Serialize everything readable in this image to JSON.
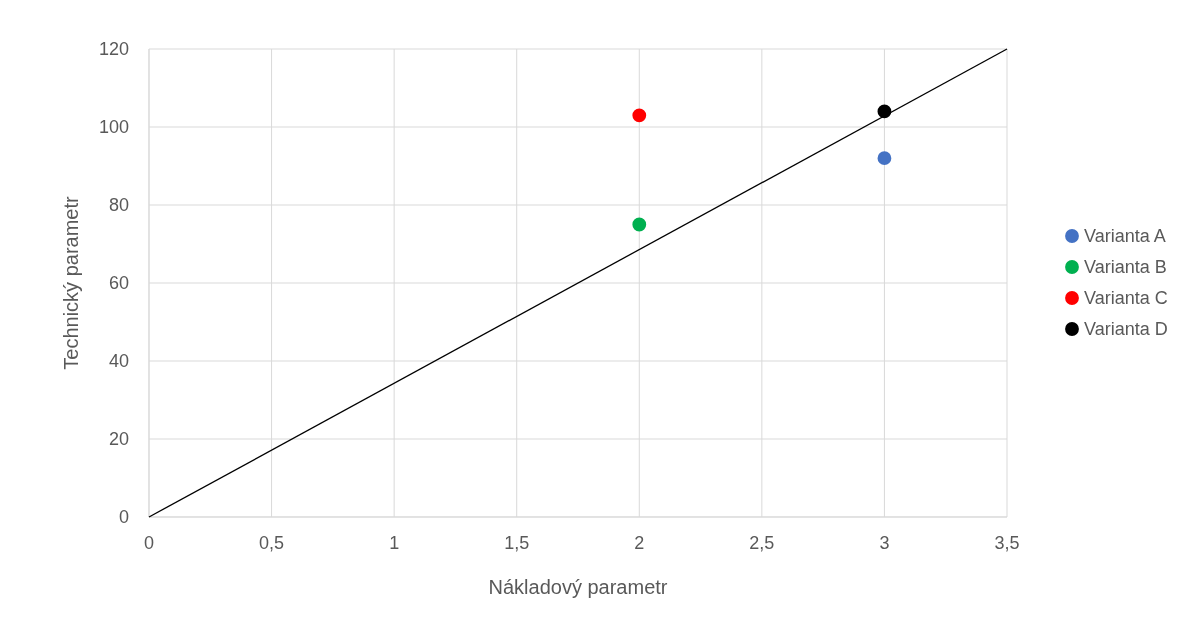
{
  "chart_data": {
    "type": "scatter",
    "xlabel": "Nákladový parametr",
    "ylabel": "Technický parametr",
    "xlim": [
      0,
      3.5
    ],
    "xticks": [
      0,
      {
        "value": 0.5,
        "label": "0,5"
      },
      1,
      {
        "value": 1.5,
        "label": "1,5"
      },
      2,
      {
        "value": 2.5,
        "label": "2,5"
      },
      3,
      {
        "value": 3.5,
        "label": "3,5"
      }
    ],
    "ylim": [
      0,
      120
    ],
    "yticks": [
      0,
      20,
      40,
      60,
      80,
      100,
      120
    ],
    "grid": true,
    "legend": "right",
    "marker": "circle",
    "series": [
      {
        "name": "Varianta A",
        "color": "#4472c4",
        "x": [
          3
        ],
        "values": [
          92
        ]
      },
      {
        "name": "Varianta B",
        "color": "#00b050",
        "x": [
          2
        ],
        "values": [
          75
        ]
      },
      {
        "name": "Varianta C",
        "color": "#ff0000",
        "x": [
          2
        ],
        "values": [
          103
        ]
      },
      {
        "name": "Varianta D",
        "color": "#000000",
        "x": [
          3
        ],
        "values": [
          104
        ]
      },
      {
        "type": "line",
        "marker": "none",
        "color": "#000000",
        "x": [
          0,
          3.5
        ],
        "values": [
          0,
          120
        ]
      }
    ]
  }
}
